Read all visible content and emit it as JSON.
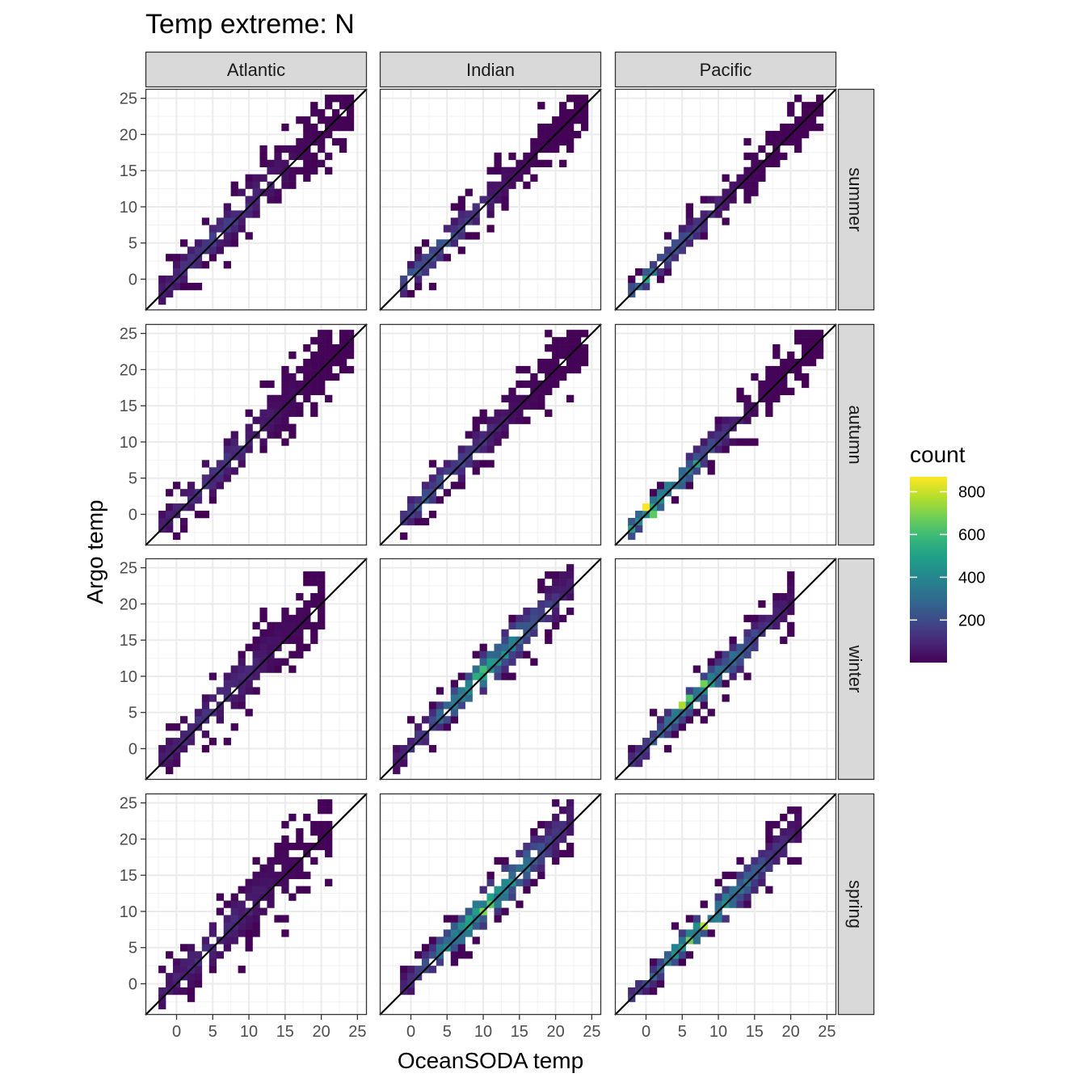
{
  "chart_data": {
    "type": "heatmap",
    "title": "Temp extreme: N",
    "xlabel": "OceanSODA temp",
    "ylabel": "Argo temp",
    "xlim": [
      -4.3,
      26.3
    ],
    "ylim": [
      -4.3,
      26.3
    ],
    "x_ticks": [
      "0",
      "5",
      "10",
      "15",
      "20",
      "25"
    ],
    "y_ticks": [
      "0",
      "5",
      "10",
      "15",
      "20",
      "25"
    ],
    "x_tick_values": [
      0,
      5,
      10,
      15,
      20,
      25
    ],
    "y_tick_values": [
      0,
      5,
      10,
      15,
      20,
      25
    ],
    "grid": true,
    "reference_line": "y = x",
    "bin_width": 1,
    "facet_columns": [
      "Atlantic",
      "Indian",
      "Pacific"
    ],
    "facet_rows": [
      "summer",
      "autumn",
      "winter",
      "spring"
    ],
    "legend": {
      "title": "count",
      "position": "right",
      "ticks": [
        "200",
        "400",
        "600",
        "800"
      ],
      "tick_values": [
        200,
        400,
        600,
        800
      ],
      "range": [
        1,
        870
      ]
    },
    "colors": [
      "#440154",
      "#482878",
      "#3e4989",
      "#31688e",
      "#26828e",
      "#1f9e89",
      "#35b779",
      "#6ece58",
      "#b5de2b",
      "#fde725"
    ],
    "panels": [
      {
        "row": "summer",
        "col": "Atlantic",
        "xmin": -2,
        "xmax": 24,
        "xskew": 0.5,
        "spread": 2.4,
        "dens": 0.32,
        "peakx": 5,
        "peak": 200,
        "hot": []
      },
      {
        "row": "summer",
        "col": "Indian",
        "xmin": -1,
        "xmax": 24,
        "xskew": 0.3,
        "spread": 2.0,
        "dens": 0.4,
        "peakx": 2,
        "peak": 320,
        "hot": []
      },
      {
        "row": "summer",
        "col": "Pacific",
        "xmin": -2,
        "xmax": 24,
        "xskew": 0.2,
        "spread": 1.8,
        "dens": 0.4,
        "peakx": 0,
        "peak": 420,
        "hot": [
          [
            0,
            0,
            520
          ]
        ]
      },
      {
        "row": "autumn",
        "col": "Atlantic",
        "xmin": -2,
        "xmax": 24,
        "xskew": 0.4,
        "spread": 2.6,
        "dens": 0.32,
        "peakx": 5,
        "peak": 170,
        "hot": []
      },
      {
        "row": "autumn",
        "col": "Indian",
        "xmin": -1,
        "xmax": 24,
        "xskew": 0.3,
        "spread": 2.2,
        "dens": 0.4,
        "peakx": 3,
        "peak": 300,
        "hot": []
      },
      {
        "row": "autumn",
        "col": "Pacific",
        "xmin": -2,
        "xmax": 24,
        "xskew": 0.2,
        "spread": 1.8,
        "dens": 0.42,
        "peakx": 1,
        "peak": 600,
        "hot": [
          [
            0,
            1,
            870
          ],
          [
            1,
            0,
            650
          ],
          [
            7,
            7,
            500
          ]
        ]
      },
      {
        "row": "winter",
        "col": "Atlantic",
        "xmin": -2,
        "xmax": 20,
        "xskew": 0.6,
        "spread": 2.6,
        "dens": 0.32,
        "peakx": 5,
        "peak": 160,
        "hot": []
      },
      {
        "row": "winter",
        "col": "Indian",
        "xmin": -2,
        "xmax": 22,
        "xskew": 0.5,
        "spread": 2.2,
        "dens": 0.4,
        "peakx": 10,
        "peak": 560,
        "hot": [
          [
            10,
            11,
            600
          ],
          [
            9,
            10,
            540
          ]
        ]
      },
      {
        "row": "winter",
        "col": "Pacific",
        "xmin": -2,
        "xmax": 20,
        "xskew": 0.3,
        "spread": 1.8,
        "dens": 0.4,
        "peakx": 7,
        "peak": 560,
        "hot": [
          [
            5,
            6,
            760
          ],
          [
            8,
            9,
            680
          ],
          [
            6,
            7,
            620
          ]
        ]
      },
      {
        "row": "spring",
        "col": "Atlantic",
        "xmin": -2,
        "xmax": 21,
        "xskew": 0.6,
        "spread": 2.8,
        "dens": 0.3,
        "peakx": 5,
        "peak": 150,
        "hot": []
      },
      {
        "row": "spring",
        "col": "Indian",
        "xmin": -1,
        "xmax": 22,
        "xskew": 0.5,
        "spread": 2.2,
        "dens": 0.4,
        "peakx": 10,
        "peak": 640,
        "hot": [
          [
            10,
            10,
            700
          ],
          [
            11,
            11,
            640
          ]
        ]
      },
      {
        "row": "spring",
        "col": "Pacific",
        "xmin": -2,
        "xmax": 21,
        "xskew": 0.2,
        "spread": 1.8,
        "dens": 0.42,
        "peakx": 8,
        "peak": 640,
        "hot": [
          [
            8,
            8,
            780
          ],
          [
            6,
            6,
            680
          ]
        ]
      }
    ]
  }
}
